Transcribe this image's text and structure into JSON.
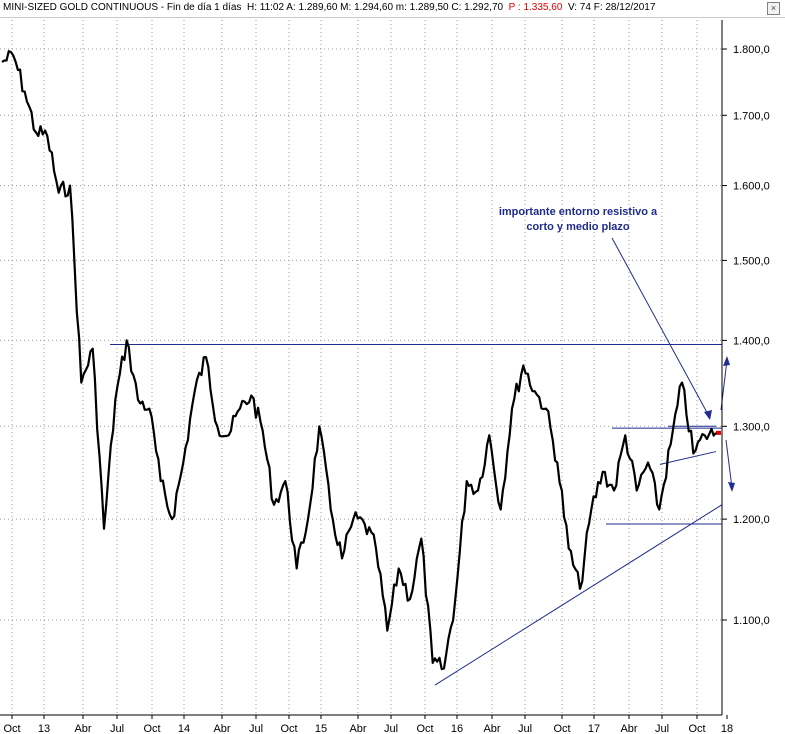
{
  "header": {
    "title": "MINI-SIZED GOLD CONTINUOUS",
    "sep1": " - ",
    "period": "Fin de día 1 días",
    "stats": "H: 11:02  A: 1.289,60  M: 1.294,60  m: 1.289,50  C: 1.292,70",
    "price_label": "P : 1.335,60",
    "tail": "V: 74  F: 28/12/2017",
    "close_symbol": "×"
  },
  "chart_data": {
    "type": "line",
    "title": "",
    "series": [
      {
        "name": "",
        "points": [
          [
            "Sep 2012",
            1780
          ],
          [
            "Oct 2012",
            1790
          ],
          [
            "Nov 2012",
            1735
          ],
          [
            "Dec 2012",
            1675
          ],
          [
            "Jan 2013",
            1670
          ],
          [
            "Feb 2013",
            1590
          ],
          [
            "Mar 2013",
            1600
          ],
          [
            "Apr 2013",
            1350
          ],
          [
            "May 2013",
            1390
          ],
          [
            "Jun 2013",
            1190
          ],
          [
            "Jul 2013",
            1330
          ],
          [
            "Aug 2013",
            1400
          ],
          [
            "Sep 2013",
            1330
          ],
          [
            "Oct 2013",
            1320
          ],
          [
            "Nov 2013",
            1240
          ],
          [
            "Dec 2013",
            1200
          ],
          [
            "Jan 2014",
            1260
          ],
          [
            "Feb 2014",
            1340
          ],
          [
            "Mar 2014",
            1380
          ],
          [
            "Apr 2014",
            1300
          ],
          [
            "May 2014",
            1290
          ],
          [
            "Jun 2014",
            1320
          ],
          [
            "Jul 2014",
            1335
          ],
          [
            "Aug 2014",
            1295
          ],
          [
            "Sep 2014",
            1215
          ],
          [
            "Oct 2014",
            1240
          ],
          [
            "Nov 2014",
            1150
          ],
          [
            "Dec 2014",
            1200
          ],
          [
            "Jan 2015",
            1300
          ],
          [
            "Feb 2015",
            1210
          ],
          [
            "Mar 2015",
            1160
          ],
          [
            "Apr 2015",
            1200
          ],
          [
            "May 2015",
            1195
          ],
          [
            "Jun 2015",
            1170
          ],
          [
            "Jul 2015",
            1090
          ],
          [
            "Aug 2015",
            1150
          ],
          [
            "Sep 2015",
            1120
          ],
          [
            "Oct 2015",
            1180
          ],
          [
            "Nov 2015",
            1060
          ],
          [
            "Dec 2015",
            1055
          ],
          [
            "Jan 2016",
            1120
          ],
          [
            "Feb 2016",
            1240
          ],
          [
            "Mar 2016",
            1230
          ],
          [
            "Apr 2016",
            1290
          ],
          [
            "May 2016",
            1210
          ],
          [
            "Jun 2016",
            1320
          ],
          [
            "Jul 2016",
            1370
          ],
          [
            "Aug 2016",
            1340
          ],
          [
            "Sep 2016",
            1320
          ],
          [
            "Oct 2016",
            1260
          ],
          [
            "Nov 2016",
            1170
          ],
          [
            "Dec 2016",
            1130
          ],
          [
            "Jan 2017",
            1210
          ],
          [
            "Feb 2017",
            1250
          ],
          [
            "Mar 2017",
            1230
          ],
          [
            "Apr 2017",
            1290
          ],
          [
            "May 2017",
            1230
          ],
          [
            "Jun 2017",
            1260
          ],
          [
            "Jul 2017",
            1210
          ],
          [
            "Aug 2017",
            1280
          ],
          [
            "Sep 2017",
            1350
          ],
          [
            "Oct 2017",
            1270
          ],
          [
            "Nov 2017",
            1290
          ],
          [
            "Dec 2017",
            1292.7
          ]
        ]
      }
    ],
    "x_tick_labels": [
      "Oct",
      "13",
      "Abr",
      "Jul",
      "Oct",
      "14",
      "Abr",
      "Jul",
      "Oct",
      "15",
      "Abr",
      "Jul",
      "Oct",
      "16",
      "Abr",
      "Jul",
      "Oct",
      "17",
      "Abr",
      "Jul",
      "Oct",
      "18"
    ],
    "y_tick_labels": [
      "1.800,0",
      "1.700,0",
      "1.600,0",
      "1.500,0",
      "1.400,0",
      "1.300,0",
      "1.200,0",
      "1.100,0"
    ],
    "y_ticks": [
      1800,
      1700,
      1600,
      1500,
      1400,
      1300,
      1200,
      1100
    ],
    "ylim": [
      1025,
      1850
    ],
    "y_scale": "log",
    "grid": true,
    "annotation": {
      "line1": "importante entorno resistivo a",
      "line2": "corto y medio plazo"
    },
    "colors": {
      "price": "#000000",
      "trendlines": "#1f2d8c",
      "grid": "#9a9a9a",
      "price_marker": "#e00000"
    }
  }
}
